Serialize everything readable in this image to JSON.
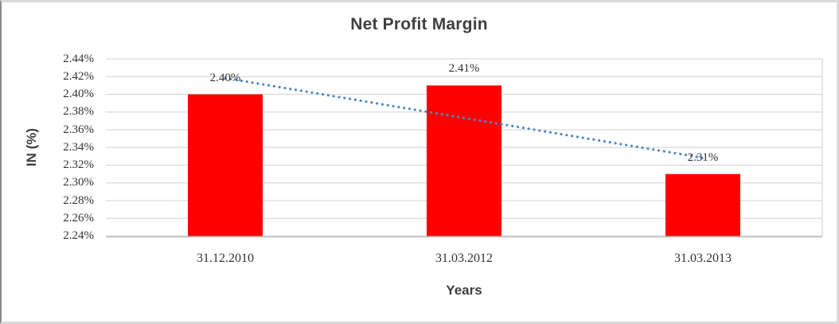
{
  "colors": {
    "bar": "#ff0000",
    "trendline": "#4e87c8",
    "gridline": "#d9d9d9",
    "axis_line": "#c0c0c0",
    "text": "#3f3f3f"
  },
  "chart_data": {
    "type": "bar",
    "title": "Net Profit Margin",
    "categories": [
      "31.12.2010",
      "31.03.2012",
      "31.03.2013"
    ],
    "values": [
      2.4,
      2.41,
      2.31
    ],
    "data_labels": [
      "2.40%",
      "2.41%",
      "2.31%"
    ],
    "xlabel": "Years",
    "ylabel": "IN (%)",
    "ylim": [
      2.24,
      2.44
    ],
    "ytick_step": 0.02,
    "ytick_labels": [
      "2.44%",
      "2.42%",
      "2.40%",
      "2.38%",
      "2.36%",
      "2.34%",
      "2.32%",
      "2.30%",
      "2.28%",
      "2.26%",
      "2.24%"
    ],
    "grid": true,
    "legend": "none",
    "trendline": {
      "type": "linear",
      "style": "dotted"
    }
  }
}
